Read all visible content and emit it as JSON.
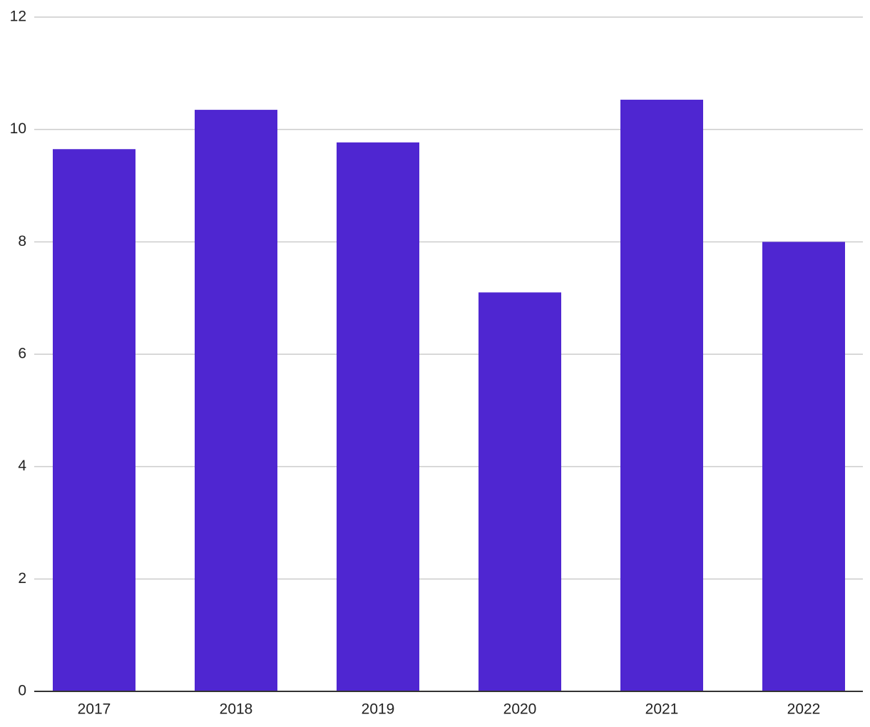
{
  "chart_data": {
    "type": "bar",
    "categories": [
      "2017",
      "2018",
      "2019",
      "2020",
      "2021",
      "2022"
    ],
    "values": [
      9.65,
      10.35,
      9.77,
      7.1,
      10.53,
      8.0
    ],
    "color": "#4f26d1",
    "ylim": [
      0,
      12
    ],
    "yticks": [
      0,
      2,
      4,
      6,
      8,
      10,
      12
    ],
    "grid": true
  }
}
